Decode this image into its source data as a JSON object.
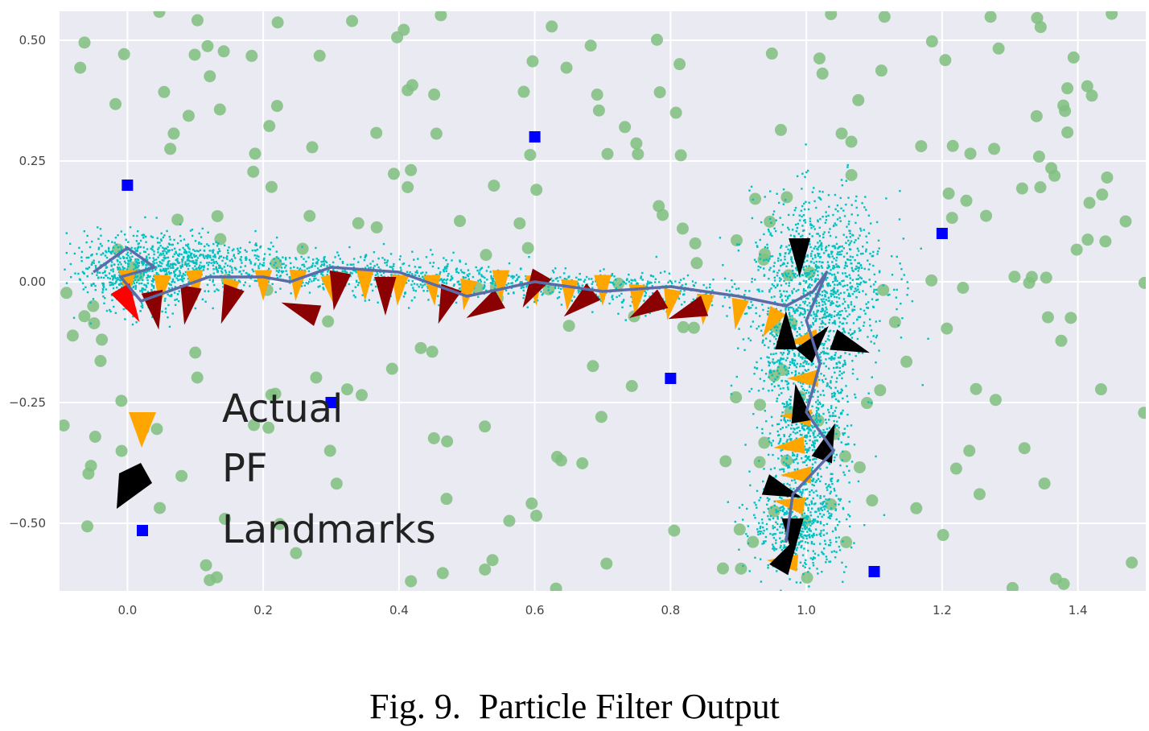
{
  "caption": "Fig. 9.  Particle Filter Output",
  "chart_data": {
    "type": "scatter",
    "title": "",
    "xlabel": "",
    "ylabel": "",
    "xlim": [
      -0.1,
      1.5
    ],
    "ylim": [
      -0.64,
      0.56
    ],
    "x_ticks": [
      0.0,
      0.2,
      0.4,
      0.6,
      0.8,
      1.0,
      1.2,
      1.4
    ],
    "x_tick_labels": [
      "0.0",
      "0.2",
      "0.4",
      "0.6",
      "0.8",
      "1.0",
      "1.2",
      "1.4"
    ],
    "y_ticks": [
      0.5,
      0.25,
      0.0,
      -0.25,
      -0.5
    ],
    "y_tick_labels": [
      "0.50",
      "0.25",
      "0.00",
      "−0.25",
      "−0.50"
    ],
    "grid": true,
    "legend_position": "bottom-left",
    "legend": [
      {
        "label": "Actual",
        "marker": "triangle",
        "color": "#FFA500"
      },
      {
        "label": "PF",
        "marker": "triangle",
        "color": "#000000"
      },
      {
        "label": "Landmarks",
        "marker": "square",
        "color": "#0000FF"
      }
    ],
    "colors": {
      "background": "#EAEAF2",
      "particles": "#00C0C0",
      "green_points": "#7FBF7F",
      "actual": "#FFA500",
      "pf": "#000000",
      "pf_history": "#8B0000",
      "pf_start": "#FF0000",
      "path": "#5A6BA8",
      "landmarks": "#0000FF"
    },
    "series": [
      {
        "name": "Landmarks",
        "type": "scatter",
        "marker": "square",
        "points": [
          [
            0.0,
            0.2
          ],
          [
            0.6,
            0.3
          ],
          [
            0.8,
            -0.2
          ],
          [
            0.3,
            -0.25
          ],
          [
            1.2,
            0.1
          ],
          [
            1.1,
            -0.6
          ]
        ]
      },
      {
        "name": "Actual",
        "type": "scatter",
        "marker": "triangle",
        "points": [
          [
            0.0,
            0.0
          ],
          [
            0.05,
            -0.01
          ],
          [
            0.1,
            0.0
          ],
          [
            0.15,
            -0.02
          ],
          [
            0.2,
            0.0
          ],
          [
            0.25,
            0.0
          ],
          [
            0.3,
            -0.01
          ],
          [
            0.35,
            0.0
          ],
          [
            0.4,
            -0.01
          ],
          [
            0.45,
            -0.01
          ],
          [
            0.5,
            -0.02
          ],
          [
            0.55,
            0.0
          ],
          [
            0.6,
            -0.01
          ],
          [
            0.65,
            -0.02
          ],
          [
            0.7,
            -0.01
          ],
          [
            0.75,
            -0.03
          ],
          [
            0.8,
            -0.04
          ],
          [
            0.85,
            -0.05
          ],
          [
            0.9,
            -0.06
          ],
          [
            0.95,
            -0.08
          ],
          [
            1.0,
            -0.12
          ],
          [
            1.0,
            -0.2
          ],
          [
            0.99,
            -0.28
          ],
          [
            0.98,
            -0.34
          ],
          [
            0.99,
            -0.4
          ],
          [
            0.98,
            -0.46
          ],
          [
            0.97,
            -0.58
          ]
        ],
        "headings_deg": [
          0,
          5,
          -5,
          10,
          0,
          5,
          -10,
          0,
          5,
          -5,
          10,
          0,
          -5,
          5,
          0,
          5,
          10,
          5,
          10,
          30,
          80,
          90,
          95,
          85,
          90,
          100,
          95
        ]
      },
      {
        "name": "PF",
        "type": "scatter",
        "marker": "triangle",
        "points": [
          [
            0.0,
            -0.04
          ],
          [
            0.04,
            -0.05
          ],
          [
            0.09,
            -0.04
          ],
          [
            0.15,
            -0.04
          ],
          [
            0.26,
            -0.06
          ],
          [
            0.31,
            -0.01
          ],
          [
            0.38,
            -0.02
          ],
          [
            0.47,
            -0.04
          ],
          [
            0.53,
            -0.05
          ],
          [
            0.6,
            -0.01
          ],
          [
            0.67,
            -0.04
          ],
          [
            0.77,
            -0.05
          ],
          [
            0.83,
            -0.06
          ],
          [
            0.99,
            0.06
          ],
          [
            0.97,
            -0.11
          ],
          [
            1.01,
            -0.13
          ],
          [
            1.06,
            -0.13
          ],
          [
            0.99,
            -0.26
          ],
          [
            1.03,
            -0.34
          ],
          [
            0.96,
            -0.43
          ],
          [
            0.98,
            -0.52
          ],
          [
            0.97,
            -0.57
          ]
        ],
        "headings_deg": [
          60,
          80,
          100,
          110,
          200,
          100,
          90,
          110,
          150,
          120,
          140,
          150,
          160,
          90,
          270,
          310,
          20,
          260,
          290,
          20,
          90,
          300
        ]
      },
      {
        "name": "Path",
        "type": "line",
        "points": [
          [
            -0.05,
            0.02
          ],
          [
            0.0,
            0.07
          ],
          [
            0.04,
            0.03
          ],
          [
            -0.01,
            0.01
          ],
          [
            0.02,
            -0.04
          ],
          [
            0.06,
            -0.02
          ],
          [
            0.12,
            0.01
          ],
          [
            0.2,
            0.01
          ],
          [
            0.24,
            0.0
          ],
          [
            0.3,
            0.03
          ],
          [
            0.4,
            0.02
          ],
          [
            0.5,
            -0.03
          ],
          [
            0.6,
            0.0
          ],
          [
            0.7,
            -0.02
          ],
          [
            0.8,
            -0.01
          ],
          [
            0.9,
            -0.03
          ],
          [
            0.97,
            -0.05
          ],
          [
            1.01,
            -0.02
          ],
          [
            1.03,
            0.02
          ],
          [
            1.0,
            -0.08
          ],
          [
            1.02,
            -0.17
          ],
          [
            1.0,
            -0.27
          ],
          [
            1.04,
            -0.35
          ],
          [
            0.98,
            -0.44
          ],
          [
            0.97,
            -0.54
          ]
        ]
      }
    ]
  }
}
